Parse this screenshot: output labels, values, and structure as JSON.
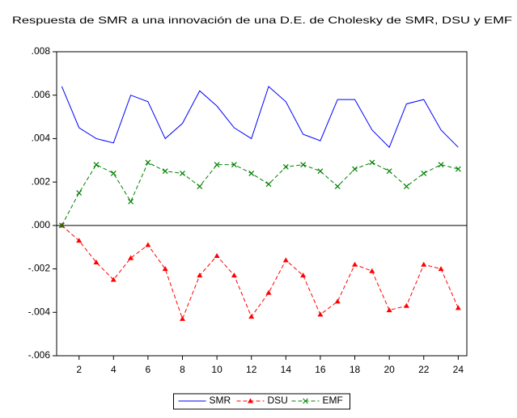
{
  "chart_data": {
    "type": "line",
    "title": "Respuesta de SMR a una innovación de una D.E. de Cholesky de SMR, DSU y EMF",
    "x": [
      1,
      2,
      3,
      4,
      5,
      6,
      7,
      8,
      9,
      10,
      11,
      12,
      13,
      14,
      15,
      16,
      17,
      18,
      19,
      20,
      21,
      22,
      23,
      24
    ],
    "series": [
      {
        "name": "SMR",
        "color": "#0000ff",
        "dash": false,
        "marker": null,
        "values": [
          0.0064,
          0.0045,
          0.004,
          0.0038,
          0.006,
          0.0057,
          0.004,
          0.0047,
          0.0062,
          0.0055,
          0.0045,
          0.004,
          0.0064,
          0.0057,
          0.0042,
          0.0039,
          0.0058,
          0.0058,
          0.0044,
          0.0036,
          0.0056,
          0.0058,
          0.0044,
          0.0036
        ]
      },
      {
        "name": "DSU",
        "color": "#ff0000",
        "dash": true,
        "marker": "triangle",
        "values": [
          0,
          -0.0007,
          -0.0017,
          -0.0025,
          -0.0015,
          -0.0009,
          -0.002,
          -0.0043,
          -0.0023,
          -0.0014,
          -0.0023,
          -0.0042,
          -0.0031,
          -0.0016,
          -0.0023,
          -0.0041,
          -0.0035,
          -0.0018,
          -0.0021,
          -0.0039,
          -0.0037,
          -0.0018,
          -0.002,
          -0.0038
        ]
      },
      {
        "name": "EMF",
        "color": "#008000",
        "dash": true,
        "marker": "x",
        "values": [
          0,
          0.0015,
          0.0028,
          0.0024,
          0.0011,
          0.0029,
          0.0025,
          0.0024,
          0.0018,
          0.0028,
          0.0028,
          0.0024,
          0.0019,
          0.0027,
          0.0028,
          0.0025,
          0.0018,
          0.0026,
          0.0029,
          0.0025,
          0.0018,
          0.0024,
          0.0028,
          0.0026
        ]
      }
    ],
    "xlim": [
      0.7,
      24.5
    ],
    "xticks": [
      2,
      4,
      6,
      8,
      10,
      12,
      14,
      16,
      18,
      20,
      22,
      24
    ],
    "ylim": [
      -0.006,
      0.008
    ],
    "yticks": [
      {
        "value": -0.006,
        "label": "-.006"
      },
      {
        "value": -0.004,
        "label": "-.004"
      },
      {
        "value": -0.002,
        "label": "-.002"
      },
      {
        "value": 0,
        "label": ".000"
      },
      {
        "value": 0.002,
        "label": ".002"
      },
      {
        "value": 0.004,
        "label": ".004"
      },
      {
        "value": 0.006,
        "label": ".006"
      },
      {
        "value": 0.008,
        "label": ".008"
      }
    ],
    "legend": "bottom"
  }
}
